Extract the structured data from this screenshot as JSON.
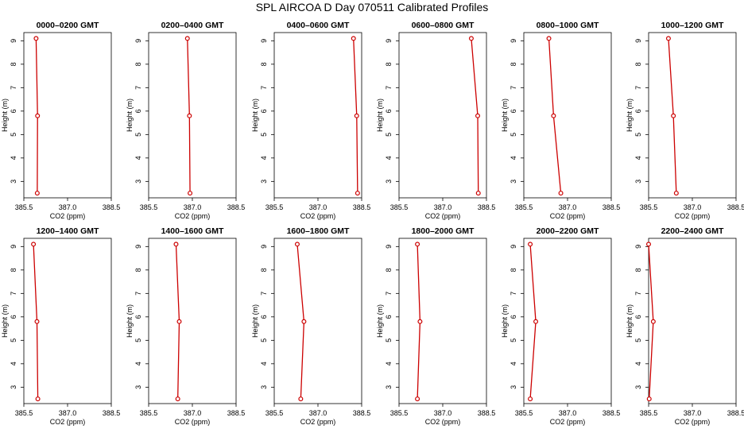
{
  "figure_title": "SPL AIRCOA D  Day 070511  Calibrated Profiles",
  "chart_data": [
    {
      "type": "line",
      "title": "0000–0200 GMT",
      "xlabel": "CO2 (ppm)",
      "ylabel": "Height (m)",
      "xlim": [
        385.5,
        388.5
      ],
      "ylim": [
        2.3,
        9.35
      ],
      "x_ticks": [
        "385.5",
        "387.0",
        "388.5"
      ],
      "y_ticks": [
        "3",
        "4",
        "5",
        "6",
        "7",
        "8",
        "9"
      ],
      "color": "#cc0000",
      "points": [
        {
          "x": 385.92,
          "y": 9.1
        },
        {
          "x": 385.97,
          "y": 5.8
        },
        {
          "x": 385.96,
          "y": 2.5
        }
      ]
    },
    {
      "type": "line",
      "title": "0200–0400 GMT",
      "xlabel": "CO2 (ppm)",
      "ylabel": "Height (m)",
      "xlim": [
        385.5,
        388.5
      ],
      "ylim": [
        2.3,
        9.35
      ],
      "x_ticks": [
        "385.5",
        "387.0",
        "388.5"
      ],
      "y_ticks": [
        "3",
        "4",
        "5",
        "6",
        "7",
        "8",
        "9"
      ],
      "color": "#cc0000",
      "points": [
        {
          "x": 386.83,
          "y": 9.1
        },
        {
          "x": 386.9,
          "y": 5.8
        },
        {
          "x": 386.92,
          "y": 2.5
        }
      ]
    },
    {
      "type": "line",
      "title": "0400–0600 GMT",
      "xlabel": "CO2 (ppm)",
      "ylabel": "Height (m)",
      "xlim": [
        385.5,
        388.5
      ],
      "ylim": [
        2.3,
        9.35
      ],
      "x_ticks": [
        "385.5",
        "387.0",
        "388.5"
      ],
      "y_ticks": [
        "3",
        "4",
        "5",
        "6",
        "7",
        "8",
        "9"
      ],
      "color": "#cc0000",
      "points": [
        {
          "x": 388.22,
          "y": 9.1
        },
        {
          "x": 388.33,
          "y": 5.8
        },
        {
          "x": 388.36,
          "y": 2.5
        }
      ]
    },
    {
      "type": "line",
      "title": "0600–0800 GMT",
      "xlabel": "CO2 (ppm)",
      "ylabel": "Height (m)",
      "xlim": [
        385.5,
        388.5
      ],
      "ylim": [
        2.3,
        9.35
      ],
      "x_ticks": [
        "385.5",
        "387.0",
        "388.5"
      ],
      "y_ticks": [
        "3",
        "4",
        "5",
        "6",
        "7",
        "8",
        "9"
      ],
      "color": "#cc0000",
      "points": [
        {
          "x": 387.98,
          "y": 9.1
        },
        {
          "x": 388.2,
          "y": 5.8
        },
        {
          "x": 388.22,
          "y": 2.5
        }
      ]
    },
    {
      "type": "line",
      "title": "0800–1000 GMT",
      "xlabel": "CO2 (ppm)",
      "ylabel": "Height (m)",
      "xlim": [
        385.5,
        388.5
      ],
      "ylim": [
        2.3,
        9.35
      ],
      "x_ticks": [
        "385.5",
        "387.0",
        "388.5"
      ],
      "y_ticks": [
        "3",
        "4",
        "5",
        "6",
        "7",
        "8",
        "9"
      ],
      "color": "#cc0000",
      "points": [
        {
          "x": 386.36,
          "y": 9.1
        },
        {
          "x": 386.52,
          "y": 5.8
        },
        {
          "x": 386.77,
          "y": 2.5
        }
      ]
    },
    {
      "type": "line",
      "title": "1000–1200 GMT",
      "xlabel": "CO2 (ppm)",
      "ylabel": "Height (m)",
      "xlim": [
        385.5,
        388.5
      ],
      "ylim": [
        2.3,
        9.35
      ],
      "x_ticks": [
        "385.5",
        "387.0",
        "388.5"
      ],
      "y_ticks": [
        "3",
        "4",
        "5",
        "6",
        "7",
        "8",
        "9"
      ],
      "color": "#cc0000",
      "points": [
        {
          "x": 386.18,
          "y": 9.1
        },
        {
          "x": 386.35,
          "y": 5.8
        },
        {
          "x": 386.45,
          "y": 2.5
        }
      ]
    },
    {
      "type": "line",
      "title": "1200–1400 GMT",
      "xlabel": "CO2 (ppm)",
      "ylabel": "Height (m)",
      "xlim": [
        385.5,
        388.5
      ],
      "ylim": [
        2.3,
        9.35
      ],
      "x_ticks": [
        "385.5",
        "387.0",
        "388.5"
      ],
      "y_ticks": [
        "3",
        "4",
        "5",
        "6",
        "7",
        "8",
        "9"
      ],
      "color": "#cc0000",
      "points": [
        {
          "x": 385.83,
          "y": 9.1
        },
        {
          "x": 385.95,
          "y": 5.8
        },
        {
          "x": 385.98,
          "y": 2.5
        }
      ]
    },
    {
      "type": "line",
      "title": "1400–1600 GMT",
      "xlabel": "CO2 (ppm)",
      "ylabel": "Height (m)",
      "xlim": [
        385.5,
        388.5
      ],
      "ylim": [
        2.3,
        9.35
      ],
      "x_ticks": [
        "385.5",
        "387.0",
        "388.5"
      ],
      "y_ticks": [
        "3",
        "4",
        "5",
        "6",
        "7",
        "8",
        "9"
      ],
      "color": "#cc0000",
      "points": [
        {
          "x": 386.44,
          "y": 9.1
        },
        {
          "x": 386.55,
          "y": 5.8
        },
        {
          "x": 386.5,
          "y": 2.5
        }
      ]
    },
    {
      "type": "line",
      "title": "1600–1800 GMT",
      "xlabel": "CO2 (ppm)",
      "ylabel": "Height (m)",
      "xlim": [
        385.5,
        388.5
      ],
      "ylim": [
        2.3,
        9.35
      ],
      "x_ticks": [
        "385.5",
        "387.0",
        "388.5"
      ],
      "y_ticks": [
        "3",
        "4",
        "5",
        "6",
        "7",
        "8",
        "9"
      ],
      "color": "#cc0000",
      "points": [
        {
          "x": 386.29,
          "y": 9.1
        },
        {
          "x": 386.52,
          "y": 5.8
        },
        {
          "x": 386.41,
          "y": 2.5
        }
      ]
    },
    {
      "type": "line",
      "title": "1800–2000 GMT",
      "xlabel": "CO2 (ppm)",
      "ylabel": "Height (m)",
      "xlim": [
        385.5,
        388.5
      ],
      "ylim": [
        2.3,
        9.35
      ],
      "x_ticks": [
        "385.5",
        "387.0",
        "388.5"
      ],
      "y_ticks": [
        "3",
        "4",
        "5",
        "6",
        "7",
        "8",
        "9"
      ],
      "color": "#cc0000",
      "points": [
        {
          "x": 386.13,
          "y": 9.1
        },
        {
          "x": 386.22,
          "y": 5.8
        },
        {
          "x": 386.13,
          "y": 2.5
        }
      ]
    },
    {
      "type": "line",
      "title": "2000–2200 GMT",
      "xlabel": "CO2 (ppm)",
      "ylabel": "Height (m)",
      "xlim": [
        385.5,
        388.5
      ],
      "ylim": [
        2.3,
        9.35
      ],
      "x_ticks": [
        "385.5",
        "387.0",
        "388.5"
      ],
      "y_ticks": [
        "3",
        "4",
        "5",
        "6",
        "7",
        "8",
        "9"
      ],
      "color": "#cc0000",
      "points": [
        {
          "x": 385.72,
          "y": 9.1
        },
        {
          "x": 385.91,
          "y": 5.8
        },
        {
          "x": 385.72,
          "y": 2.5
        }
      ]
    },
    {
      "type": "line",
      "title": "2200–2400 GMT",
      "xlabel": "CO2 (ppm)",
      "ylabel": "Height (m)",
      "xlim": [
        385.5,
        388.5
      ],
      "ylim": [
        2.3,
        9.35
      ],
      "x_ticks": [
        "385.5",
        "387.0",
        "388.5"
      ],
      "y_ticks": [
        "3",
        "4",
        "5",
        "6",
        "7",
        "8",
        "9"
      ],
      "color": "#cc0000",
      "points": [
        {
          "x": 385.5,
          "y": 9.1
        },
        {
          "x": 385.66,
          "y": 5.8
        },
        {
          "x": 385.52,
          "y": 2.5
        }
      ]
    }
  ]
}
